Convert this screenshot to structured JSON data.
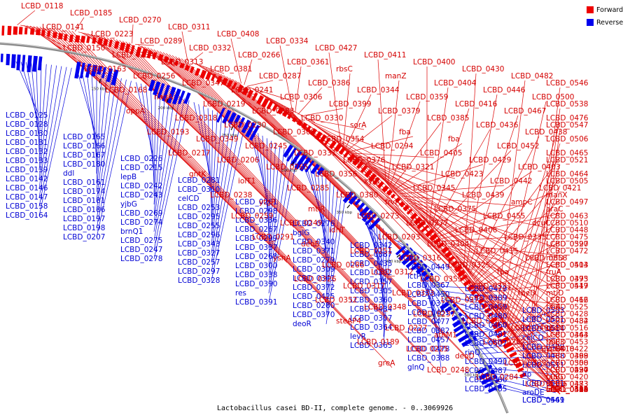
{
  "caption": "Lactobacillus casei BD-II, complete genome. - 0..3069926",
  "legend": [
    {
      "label": "Forward",
      "color": "#ee0000"
    },
    {
      "label": "Reverse",
      "color": "#0000ee"
    }
  ],
  "ticks": [
    "150 kbp",
    "200 kbp",
    "250 kbp",
    "300 kbp",
    "350 kbp",
    "400 kbp",
    "450 kbp",
    "500 kbp"
  ],
  "forward_labels": [
    "LCBD_0118",
    "LCBD_0141",
    "LCBD_0150",
    "LCBD_0163",
    "LCBD_0168",
    "oppA",
    "LCBD_0193",
    "LCBD_0217",
    "gntK",
    "LCBD_0238",
    "LCBD_0259",
    "LCBD_0291",
    "yshA",
    "LCBD_0326",
    "LCBD_0352",
    "steAP4",
    "LCBD_0189",
    "greA",
    "LCBD_0185",
    "LCBD_0223",
    "LCBD_0234",
    "LCBD_0256",
    "nagA",
    "LCBD_0318",
    "LCBD_0349",
    "LCBD_0206",
    "iolT1",
    "ytgP",
    "LCBD_0249",
    "deoB",
    "LCBD_0286",
    "LCBD_0317",
    "LCBD_0348",
    "LCBD_0227",
    "LCBD_0225",
    "LCBD_0248",
    "LCBD_0270",
    "LCBD_0289",
    "LCBD_0313",
    "LCBD_0347",
    "LCBD_0219",
    "LCBD_0230",
    "LCBD_0245",
    "LCBD_0265",
    "LCBD_0285",
    "mtlR",
    "idnT",
    "LCBD_0251",
    "LCBD_0312",
    "LCBD_0333",
    "LCBD_0237",
    "athM1",
    "deoD",
    "LCBD_0284",
    "LCBD_0311",
    "LCBD_0332",
    "LCBD_0381",
    "LCBD_0241",
    "LCBD_0283",
    "LCBD_0308",
    "LCBD_0331",
    "LCBD_0356",
    "LCBD_0380",
    "LCBD_0273",
    "LCBD_0293",
    "LCBD_0316",
    "LCBD_0355",
    "LCBD_0378",
    "LCBD_0254",
    "LCBD_0282",
    "LCBD_0339",
    "LCBD_0366",
    "LCBD_0408",
    "LCBD_0266",
    "LCBD_0287",
    "LCBD_0306",
    "LCBD_0330",
    "LCBD_0354",
    "LCBD_0376",
    "xylB",
    "frvR",
    "LCBD_0277",
    "LCBD_0304",
    "LCBD_0325",
    "LCBD_0351",
    "agaD",
    "LCBD_0401",
    "LCBD_0418",
    "LCBD_0290",
    "LCBD_0315",
    "LCBD_0334",
    "LCBD_0361",
    "LCBD_0386",
    "LCBD_0399",
    "sorA",
    "LCBD_0294",
    "LCBD_0321",
    "LCBD_0345",
    "LCBD_0375",
    "LCBD_0406",
    "LCBD_0415",
    "fba",
    "theD",
    "ydiC",
    "LCBD_0363",
    "LCBD_0398",
    "fabG",
    "LCBD_0424",
    "LCBD_0427",
    "rbsC",
    "LCBD_0344",
    "LCBD_0379",
    "fba",
    "LCBD_0405",
    "LCBD_0423",
    "LCBD_0439",
    "LCBD_0455",
    "LCBD_0335",
    "LCBD_0358",
    "LCBD_0395",
    "LCBD_0412",
    "LCBD_0432",
    "LCBD_0453",
    "LCBD_0350",
    "LCBD_0373",
    "LCBD_0394",
    "LCBD_0411",
    "manZ",
    "LCBD_0359",
    "LCBD_0385",
    "fba",
    "LCBD_0429",
    "LCBD_0442",
    "ampC",
    "dcuC",
    "LCBD_0397",
    "LCBD_0413",
    "LCBD_0447",
    "rihA",
    "rpoN",
    "LCBD_0422",
    "LCBD_0437",
    "LCBD_0454",
    "celR",
    "LCBD_0400",
    "LCBD_0404",
    "LCBD_0416",
    "LCBD_0436",
    "LCBD_0452",
    "LCBD_0403",
    "LCBD_0421",
    "araC",
    "LCBD_0448",
    "LCBD_0472",
    "fruA",
    "mtlD",
    "LCBD_0428",
    "LCBD_0444",
    "LCBD_0469",
    "LCBD_0420",
    "LCBD_0440",
    "LCBD_0468",
    "LCBD_0430",
    "LCBD_0446",
    "LCBD_0467",
    "LCBD_0438",
    "LCBD_0465",
    "LCBD_0464",
    "manX",
    "LCBD_0463",
    "LCBD_0475",
    "mtlD",
    "LCBD_0473",
    "LCBD_0466",
    "LCBD_0484",
    "thiF3",
    "LCBD_0508",
    "LCBD_0483",
    "iolD",
    "manL",
    "LCBD_0482",
    "LCBD_0500",
    "LCBD_0476",
    "LCBD_0506",
    "LCBD_0521",
    "LCBD_0505",
    "LCBD_0497",
    "LCBD_0510",
    "LCBD_0520",
    "LCBD_0504",
    "LCBD_0519",
    "LCBD_0525",
    "LCBD_0516",
    "yshA",
    "LCBD_0524",
    "LCBD_0533",
    "LCBD_0529",
    "LCBD_0532",
    "LCBD_0546",
    "LCBD_0538",
    "LCBD_0547"
  ],
  "reverse_labels": [
    "LCBD_0125",
    "LCBD_0128",
    "LCBD_0130",
    "LCBD_0131",
    "LCBD_0132",
    "LCBD_0133",
    "LCBD_0139",
    "LCBD_0142",
    "LCBD_0146",
    "LCBD_0147",
    "LCBD_0158",
    "LCBD_0164",
    "LCBD_0165",
    "LCBD_0166",
    "LCBD_0167",
    "LCBD_0180",
    "ddl",
    "LCBD_0161",
    "LCBD_0174",
    "LCBD_0181",
    "LCBD_0186",
    "LCBD_0197",
    "LCBD_0198",
    "LCBD_0207",
    "LCBD_0226",
    "LCBD_0215",
    "lepB",
    "LCBD_0242",
    "LCBD_0243",
    "yjbG",
    "LCBD_0269",
    "LCBD_0274",
    "brnQ1",
    "LCBD_0275",
    "LCBD_0247",
    "LCBD_0278",
    "LCBD_0281",
    "LCBD_0310",
    "celCD",
    "LCBD_0253",
    "LCBD_0295",
    "LCBD_0255",
    "LCBD_0296",
    "LCBD_0343",
    "LCBD_0327",
    "LCBD_0257",
    "LCBD_0297",
    "LCBD_0328",
    "LCBD_0261",
    "LCBD_0298",
    "LCBD_0336",
    "LCBD_0267",
    "LCBD_0299",
    "LCBD_0337",
    "LCBD_0268",
    "LCBD_0300",
    "LCBD_0338",
    "LCBD_0390",
    "res",
    "LCBD_0391",
    "LCBD_0276",
    "bglG",
    "LCBD_0340",
    "LCBD_0371",
    "LCBD_0279",
    "LCBD_0309",
    "LCBD_0341",
    "LCBD_0372",
    "LCBD_0425",
    "LCBD_0280",
    "LCBD_0370",
    "deoR",
    "LCBD_0342",
    "LCBD_0387",
    "LCBD_0435",
    "LCBD_0302",
    "LCBD_0357",
    "LCBD_0305",
    "LCBD_0360",
    "LCBD_0434",
    "LCBD_0307",
    "LCBD_0364",
    "levR",
    "LCBD_0365",
    "LCBD_0449",
    "lctP",
    "LCBD_0367",
    "LCBD_0450",
    "LCBD_0377",
    "LCBD_0451",
    "LCBD_0477",
    "LCBD_0382",
    "LCBD_0457",
    "LCBD_0478",
    "LCBD_0388",
    "glnQ",
    "LCBD_0479",
    "LCBD_0389",
    "LCBD_0459",
    "LCBD_0480",
    "LCBD_0460",
    "LCBD_0481",
    "LCBD_0507",
    "rinQ",
    "LCBD_0490",
    "LCBD_0487",
    "LCBD_0486",
    "LCBD_0485",
    "LCBD_0503",
    "LCBD_0501",
    "LCBD_0514",
    "celCD",
    "LCBD_0489",
    "LCBD_0488",
    "LCBD_0511",
    "dp",
    "LCBD_0531",
    "aroDE",
    "LCBD_0549",
    "LCBD_0461"
  ]
}
